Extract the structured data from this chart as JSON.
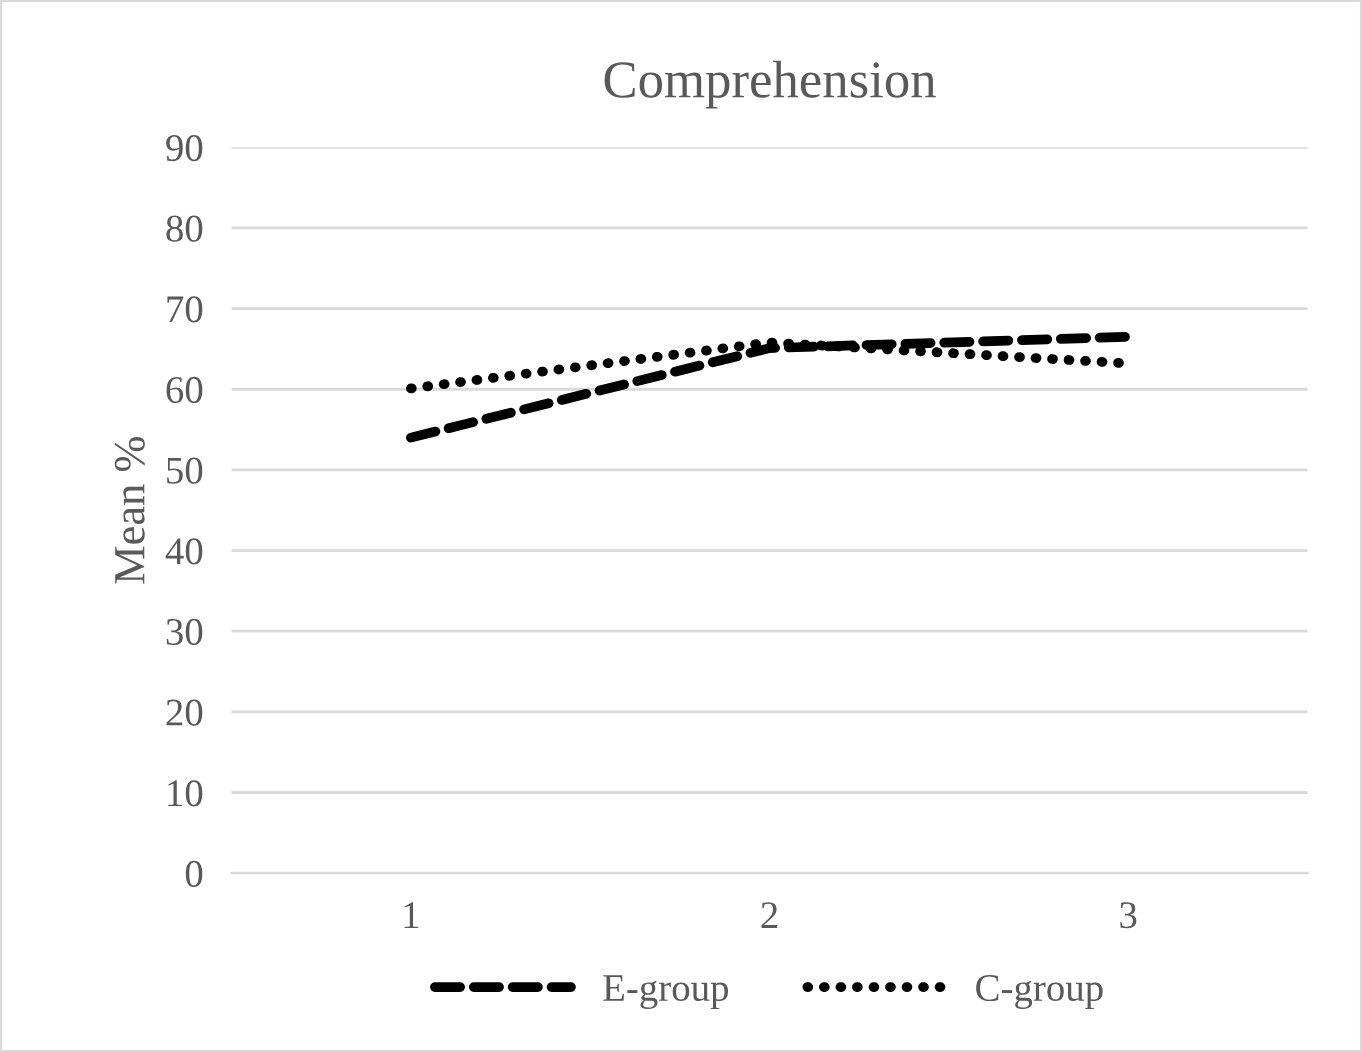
{
  "chart_data": {
    "type": "line",
    "title": "Comprehension",
    "ylabel": "Mean %",
    "categories": [
      "1",
      "2",
      "3"
    ],
    "series": [
      {
        "name": "E-group",
        "color": "#000000",
        "line_style": "dashed",
        "values": [
          54,
          65.1,
          66.5
        ]
      },
      {
        "name": "C-group",
        "color": "#000000",
        "line_style": "dotted",
        "values": [
          60.1,
          65.8,
          63.2
        ]
      }
    ],
    "ylim": [
      0,
      90
    ],
    "yticks": [
      0,
      10,
      20,
      30,
      40,
      50,
      60,
      70,
      80,
      90
    ],
    "grid": "y",
    "legend": "bottom",
    "marker": "none"
  }
}
